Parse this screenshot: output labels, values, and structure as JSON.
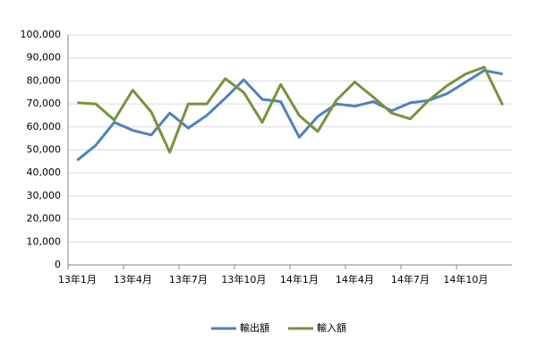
{
  "chart_data": {
    "type": "line",
    "categories": [
      "13年1月",
      null,
      null,
      "13年4月",
      null,
      null,
      "13年7月",
      null,
      null,
      "13年10月",
      null,
      null,
      "14年1月",
      null,
      null,
      "14年4月",
      null,
      null,
      "14年7月",
      null,
      null,
      "14年10月",
      null,
      null
    ],
    "series": [
      {
        "name": "輸出額",
        "color": "#4f81bd",
        "values": [
          45500,
          52000,
          62000,
          58500,
          56500,
          66000,
          59500,
          65000,
          72500,
          80500,
          72000,
          71000,
          55500,
          64500,
          70000,
          69000,
          71000,
          67000,
          70500,
          71500,
          74500,
          79500,
          84500,
          83000
        ]
      },
      {
        "name": "輸入額",
        "color": "#77933c",
        "values": [
          70500,
          70000,
          63000,
          76000,
          66500,
          49000,
          70000,
          70000,
          81000,
          75000,
          62000,
          78500,
          65000,
          58000,
          71500,
          79500,
          73000,
          66000,
          63500,
          71500,
          78000,
          83000,
          86000,
          69500
        ]
      }
    ],
    "ylim": [
      0,
      100000
    ],
    "yticks": [
      0,
      {
        "value": 10000,
        "label": "10,000"
      },
      {
        "value": 20000,
        "label": "20,000"
      },
      {
        "value": 30000,
        "label": "30,000"
      },
      {
        "value": 40000,
        "label": "40,000"
      },
      {
        "value": 50000,
        "label": "50,000"
      },
      {
        "value": 60000,
        "label": "60,000"
      },
      {
        "value": 70000,
        "label": "70,000"
      },
      {
        "value": 80000,
        "label": "80,000"
      },
      {
        "value": 90000,
        "label": "90,000"
      },
      {
        "value": 100000,
        "label": "100,000"
      }
    ],
    "grid": true,
    "legend": "bottom"
  }
}
